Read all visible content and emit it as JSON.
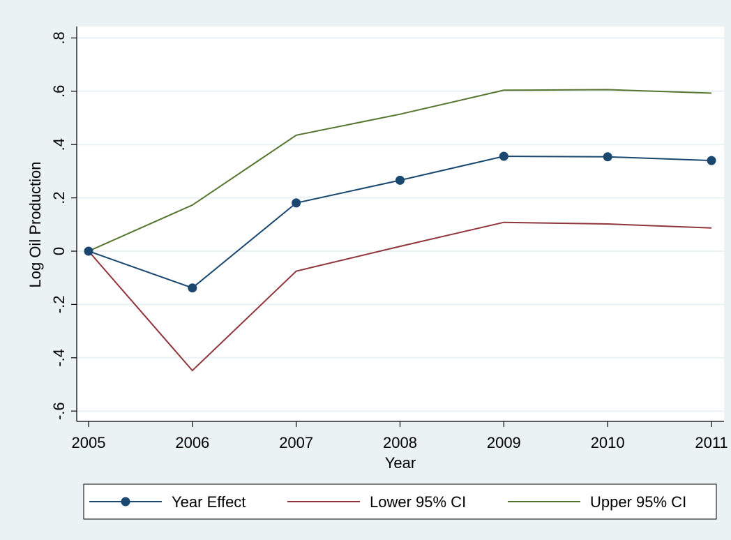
{
  "chart_data": {
    "type": "line",
    "x": [
      2005,
      2006,
      2007,
      2008,
      2009,
      2010,
      2011
    ],
    "series": [
      {
        "name": "Year Effect",
        "values": [
          0.0,
          -0.138,
          0.181,
          0.266,
          0.356,
          0.354,
          0.34
        ],
        "color": "#1a476f",
        "markers": true
      },
      {
        "name": "Lower 95% CI",
        "values": [
          0.0,
          -0.448,
          -0.075,
          0.018,
          0.108,
          0.102,
          0.087
        ],
        "color": "#90353b",
        "markers": false
      },
      {
        "name": "Upper 95% CI",
        "values": [
          0.0,
          0.173,
          0.435,
          0.514,
          0.604,
          0.606,
          0.593
        ],
        "color": "#55752f",
        "markers": false
      }
    ],
    "xlabel": "Year",
    "ylabel": "Log Oil Production",
    "xticks": [
      "2005",
      "2006",
      "2007",
      "2008",
      "2009",
      "2010",
      "2011"
    ],
    "yticks": [
      {
        "value": -0.6,
        "label": "-.6"
      },
      {
        "value": -0.4,
        "label": "-.4"
      },
      {
        "value": -0.2,
        "label": "-.2"
      },
      {
        "value": 0,
        "label": "0"
      },
      {
        "value": 0.2,
        "label": ".2"
      },
      {
        "value": 0.4,
        "label": ".4"
      },
      {
        "value": 0.6,
        "label": ".6"
      },
      {
        "value": 0.8,
        "label": ".8"
      }
    ],
    "xlim": [
      2005,
      2011
    ],
    "ylim": [
      -0.65,
      0.85
    ],
    "grid": true,
    "legend_position": "bottom",
    "background_color": "#eaf2f3",
    "plot_background": "#ffffff",
    "grid_color": "#eaf2f3"
  }
}
